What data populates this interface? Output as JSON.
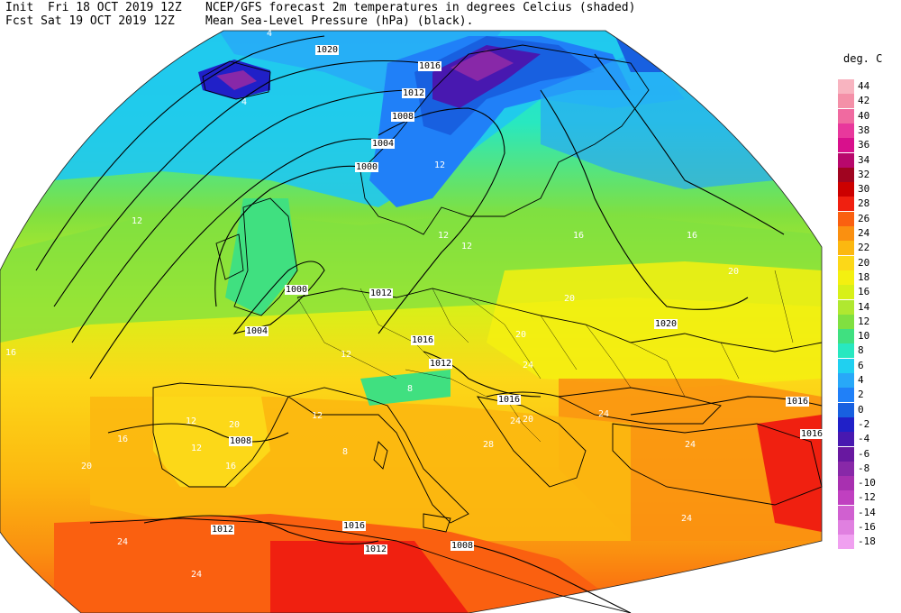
{
  "header": {
    "line1_left": "Init  Fri 18 OCT 2019 12Z",
    "line1_right": "NCEP/GFS forecast 2m temperatures in degrees Celcius (shaded)",
    "line2_left": "Fcst Sat 19 OCT 2019 12Z",
    "line2_right": "Mean Sea-Level Pressure (hPa) (black)."
  },
  "legend": {
    "title": "deg. C",
    "entries": [
      {
        "label": "44",
        "color": "#f8b4c0"
      },
      {
        "label": "42",
        "color": "#f490a8"
      },
      {
        "label": "40",
        "color": "#f06aa0"
      },
      {
        "label": "38",
        "color": "#e8389c"
      },
      {
        "label": "36",
        "color": "#d8108c"
      },
      {
        "label": "34",
        "color": "#b8086c"
      },
      {
        "label": "32",
        "color": "#a00420"
      },
      {
        "label": "30",
        "color": "#cc0000"
      },
      {
        "label": "28",
        "color": "#f02010"
      },
      {
        "label": "26",
        "color": "#fa6010"
      },
      {
        "label": "24",
        "color": "#fa9010"
      },
      {
        "label": "22",
        "color": "#fcb810"
      },
      {
        "label": "20",
        "color": "#fcd818"
      },
      {
        "label": "18",
        "color": "#f4f010"
      },
      {
        "label": "16",
        "color": "#d8f018"
      },
      {
        "label": "14",
        "color": "#b0e830"
      },
      {
        "label": "12",
        "color": "#80e040"
      },
      {
        "label": "10",
        "color": "#40e080"
      },
      {
        "label": "8",
        "color": "#28e8c0"
      },
      {
        "label": "6",
        "color": "#20d0f0"
      },
      {
        "label": "4",
        "color": "#28a8f8"
      },
      {
        "label": "2",
        "color": "#2080f8"
      },
      {
        "label": "0",
        "color": "#1860e0"
      },
      {
        "label": "-2",
        "color": "#2020c8"
      },
      {
        "label": "-4",
        "color": "#4818b0"
      },
      {
        "label": "-6",
        "color": "#6818a0"
      },
      {
        "label": "-8",
        "color": "#8828a8"
      },
      {
        "label": "-10",
        "color": "#a830b0"
      },
      {
        "label": "-12",
        "color": "#c040c0"
      },
      {
        "label": "-14",
        "color": "#d060d0"
      },
      {
        "label": "-16",
        "color": "#e080e0"
      },
      {
        "label": "-18",
        "color": "#f0a0f0"
      }
    ]
  },
  "temp_labels": [
    "4",
    "4",
    "12",
    "12",
    "12",
    "16",
    "16",
    "20",
    "20",
    "20",
    "24",
    "24",
    "24",
    "24",
    "24",
    "28",
    "20",
    "12",
    "12",
    "16",
    "16",
    "20",
    "20",
    "24",
    "24",
    "8",
    "8",
    "12",
    "12",
    "12",
    "16"
  ],
  "pressure_labels": [
    "1020",
    "1016",
    "1012",
    "1008",
    "1004",
    "1000",
    "1000",
    "1004",
    "1008",
    "1012",
    "1016",
    "1020",
    "1016",
    "1012",
    "1012",
    "1016",
    "1016",
    "1008",
    "1012",
    "1016"
  ]
}
